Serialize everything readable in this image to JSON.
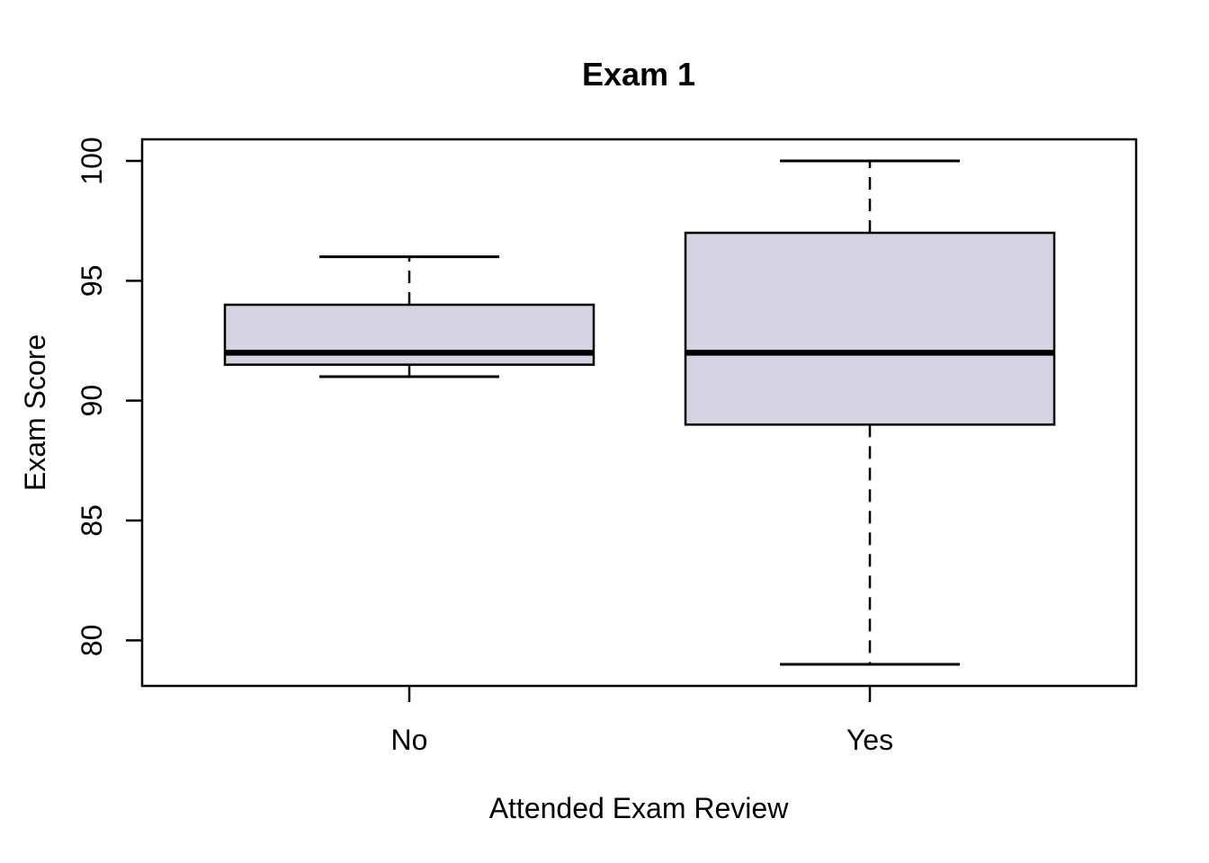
{
  "chart_data": {
    "type": "boxplot",
    "title": "Exam 1",
    "xlabel": "Attended Exam Review",
    "ylabel": "Exam Score",
    "categories": [
      "No",
      "Yes"
    ],
    "groups": [
      {
        "label": "No",
        "whisker_low": 91,
        "q1": 91.5,
        "median": 92,
        "q3": 94,
        "whisker_high": 96
      },
      {
        "label": "Yes",
        "whisker_low": 79,
        "q1": 89,
        "median": 92,
        "q3": 97,
        "whisker_high": 100
      }
    ],
    "y_ticks": [
      80,
      85,
      90,
      95,
      100
    ],
    "ylim": [
      78.1,
      100.9
    ],
    "grid": false,
    "legend": "none",
    "colors": {
      "box_fill": "#d7d2e2",
      "line": "#000000",
      "background": "#ffffff"
    }
  }
}
